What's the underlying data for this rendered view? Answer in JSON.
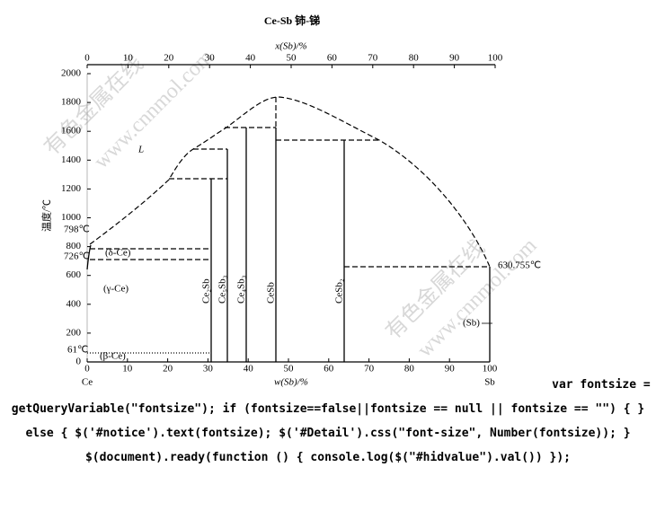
{
  "figure": {
    "title": "Ce-Sb   铈-锑",
    "top_axis_label": "x(Sb)/%",
    "bottom_axis_label": "w(Sb)/%",
    "y_axis_label": "温度/℃",
    "top_ticks": [
      0,
      10,
      20,
      30,
      40,
      50,
      60,
      70,
      80,
      90,
      100
    ],
    "bottom_ticks": [
      0,
      10,
      20,
      30,
      40,
      50,
      60,
      70,
      80,
      90,
      100
    ],
    "y_ticks": [
      0,
      200,
      400,
      600,
      800,
      1000,
      1200,
      1400,
      1600,
      1800,
      2000
    ],
    "left_element": "Ce",
    "right_element": "Sb",
    "temperatures": {
      "t798": "798℃",
      "t726": "726℃",
      "t61": "61℃",
      "t630": "630.755℃"
    },
    "regions": {
      "liquid": "L",
      "delta": "(δ-Ce)",
      "gamma": "(γ-Ce)",
      "beta": "(β-Ce)",
      "sb": "(Sb)"
    },
    "phases": [
      "Ce₂Sb",
      "Ce₅Sb₃",
      "Ce₄Sb₃",
      "CeSb",
      "CeSb₂"
    ],
    "watermark": {
      "text": "有色金属在线",
      "url": "www.cnnmol.com"
    }
  },
  "code_text": "var fontsize = getQueryVariable(\"fontsize\"); if (fontsize==false||fontsize == null || fontsize == \"\") { } else { $('#notice').text(fontsize); $('#Detail').css(\"font-size\", Number(fontsize)); } $(document).ready(function () { console.log($(\"#hidvalue\").val()) });"
}
